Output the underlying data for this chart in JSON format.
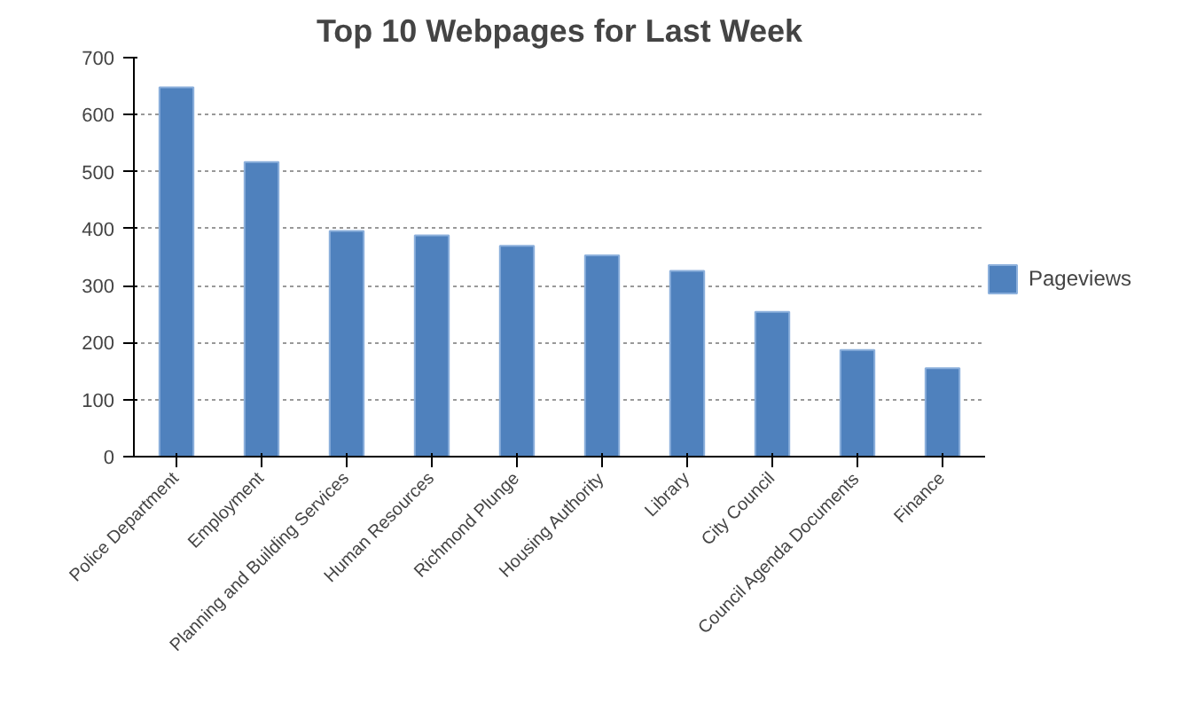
{
  "chart_data": {
    "type": "bar",
    "title": "Top 10 Webpages for Last Week",
    "categories": [
      "Police Department",
      "Employment",
      "Planning and Building Services",
      "Human Resources",
      "Richmond Plunge",
      "Housing Authority",
      "Library",
      "City Council",
      "Council Agenda Documents",
      "Finance"
    ],
    "series": [
      {
        "name": "Pageviews",
        "color": "#4f81bd",
        "values": [
          648,
          517,
          396,
          388,
          370,
          353,
          326,
          254,
          187,
          155
        ]
      }
    ],
    "ylim": [
      0,
      700
    ],
    "yticks": [
      0,
      100,
      200,
      300,
      400,
      500,
      600,
      700
    ],
    "grid": "y",
    "legend": "right"
  }
}
